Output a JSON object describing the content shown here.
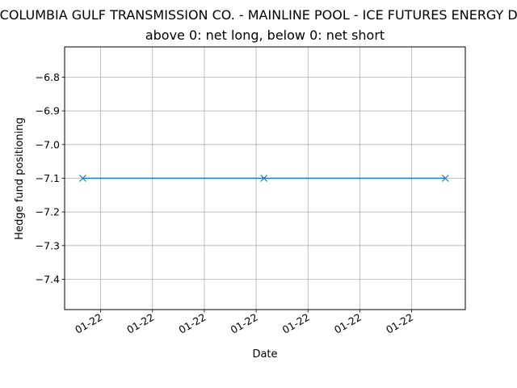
{
  "chart_data": {
    "type": "line",
    "title": "COLUMBIA GULF TRANSMISSION CO. -  MAINLINE POOL - ICE FUTURES ENERGY DIV",
    "subtitle": "above 0: net long, below 0: net short",
    "xlabel": "Date",
    "ylabel": "Hedge fund positioning",
    "ylim": [
      -7.49,
      -6.71
    ],
    "yticks": [
      -6.8,
      -6.9,
      -7.0,
      -7.1,
      -7.2,
      -7.3,
      -7.4
    ],
    "ytick_labels": [
      "−6.8",
      "−6.9",
      "−7.0",
      "−7.1",
      "−7.2",
      "−7.3",
      "−7.4"
    ],
    "xticks": [
      1,
      2,
      3,
      4,
      5,
      6,
      7
    ],
    "xtick_labels": [
      "01-22",
      "01-22",
      "01-22",
      "01-22",
      "01-22",
      "01-22",
      "01-22"
    ],
    "xlim": [
      0.305,
      8.035
    ],
    "grid": true,
    "series": [
      {
        "x": [
          0.655,
          4.15,
          7.65
        ],
        "values": [
          -7.1,
          -7.1,
          -7.1
        ],
        "color": "#1f77b4",
        "marker": "x"
      }
    ]
  }
}
